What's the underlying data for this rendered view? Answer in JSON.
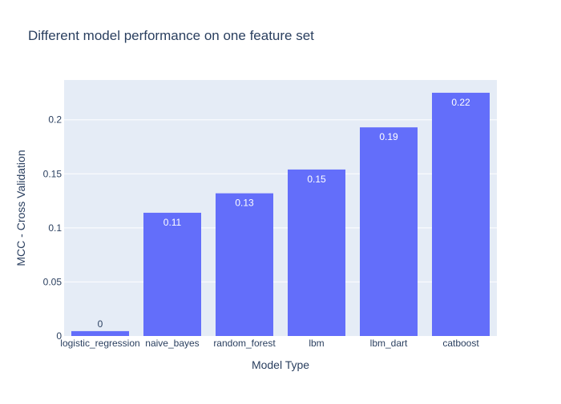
{
  "chart_data": {
    "type": "bar",
    "title": "Different model performance on one feature set",
    "xlabel": "Model Type",
    "ylabel": "MCC - Cross Validation",
    "categories": [
      "logistic_regression",
      "naive_bayes",
      "random_forest",
      "lbm",
      "lbm_dart",
      "catboost"
    ],
    "values": [
      0.0045,
      0.114,
      0.132,
      0.154,
      0.193,
      0.225
    ],
    "data_labels": [
      "0",
      "0.11",
      "0.13",
      "0.15",
      "0.19",
      "0.22"
    ],
    "ylim": [
      0,
      0.2368
    ],
    "yticks": [
      0,
      0.05,
      0.1,
      0.15,
      0.2
    ],
    "ytick_labels": [
      "0",
      "0.05",
      "0.1",
      "0.15",
      "0.2"
    ],
    "grid": true,
    "legend": "none",
    "colors": {
      "bar": "#636efa",
      "plot_bg": "#e5ecf6",
      "grid": "#ffffff",
      "text": "#2a3f5f",
      "label_inside": "#ffffff"
    }
  }
}
